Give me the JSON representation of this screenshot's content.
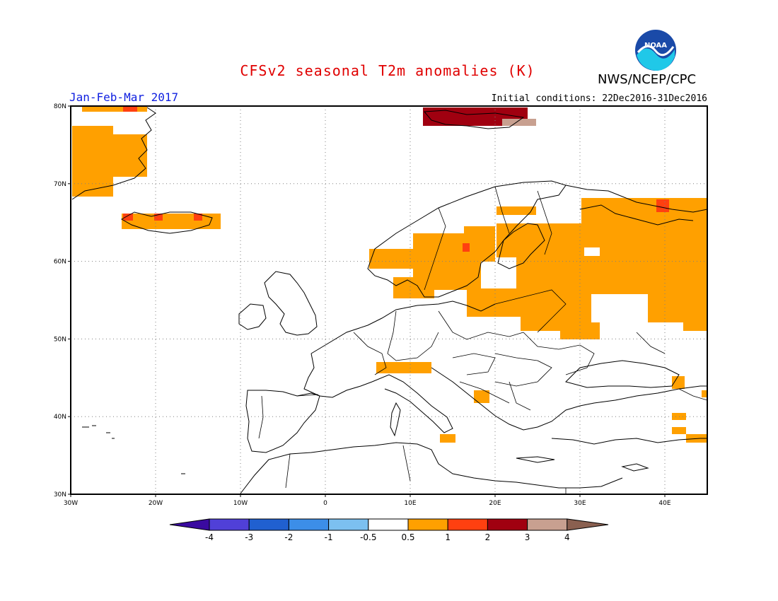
{
  "header": {
    "title": "CFSv2 seasonal T2m anomalies (K)",
    "agency": "NWS/NCEP/CPC",
    "period": "Jan-Feb-Mar 2017",
    "initial_conditions": "Initial conditions: 22Dec2016-31Dec2016",
    "logo_text": "NOAA"
  },
  "map": {
    "lon_range": [
      -30,
      45
    ],
    "lat_range": [
      30,
      80
    ],
    "lat_ticks": [
      "30N",
      "40N",
      "50N",
      "60N",
      "70N",
      "80N"
    ],
    "lon_ticks": [
      "30W",
      "20W",
      "10W",
      "0",
      "10E",
      "20E",
      "30E",
      "40E"
    ],
    "grid": "dotted"
  },
  "colorbar": {
    "labels": [
      "-4",
      "-3",
      "-2",
      "-1",
      "-0.5",
      "0.5",
      "1",
      "2",
      "3",
      "4"
    ],
    "colors": [
      "#3a0aa0",
      "#5040d8",
      "#2060d0",
      "#3c8ee8",
      "#7cc0f0",
      "#ffffff",
      "#ffa000",
      "#ff4010",
      "#a00010",
      "#c8a090",
      "#8a6050"
    ]
  }
}
